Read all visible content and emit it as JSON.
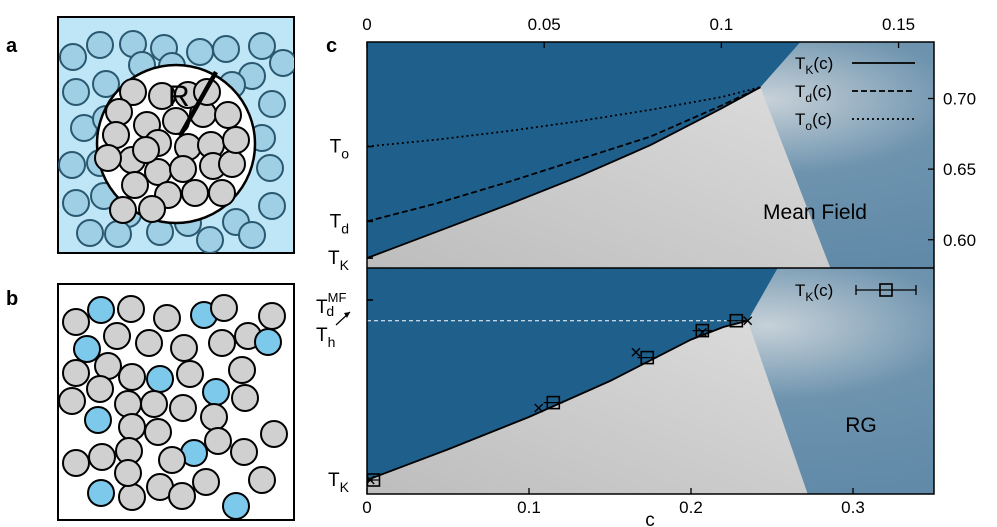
{
  "panels": {
    "a": {
      "letter": "a",
      "radius_label": "R"
    },
    "b": {
      "letter": "b"
    },
    "c": {
      "letter": "c"
    }
  },
  "colors": {
    "blue_dark": "#1e5f8c",
    "gray_light": "#d6d6d6",
    "particle_blue": "#7cc9ec",
    "particle_gray": "#d0d0d0",
    "panel_a_bg": "#bfe6f6"
  },
  "chart_data": [
    {
      "type": "line",
      "name": "Mean Field",
      "title": "Mean Field",
      "xlabel": "",
      "ylabel": "",
      "x_axis": "top",
      "y_axis": "right",
      "xlim": [
        0,
        0.16
      ],
      "ylim": [
        0.58,
        0.74
      ],
      "xticks": [
        "0",
        "0.05",
        "0.1",
        "0.15"
      ],
      "xtick_values": [
        0,
        0.05,
        0.1,
        0.15
      ],
      "yticks": [
        "0.60",
        "0.65",
        "0.70"
      ],
      "ytick_values": [
        0.6,
        0.65,
        0.7
      ],
      "left_labels": [
        {
          "text": "T",
          "sub": "o",
          "y": 0.666
        },
        {
          "text": "T",
          "sub": "d",
          "y": 0.613
        },
        {
          "text": "T",
          "sub": "K",
          "y": 0.587
        }
      ],
      "series": [
        {
          "name": "T_K(c)",
          "label": "T",
          "sub": "K",
          "suffix": "(c)",
          "style": "solid",
          "x": [
            0,
            0.02,
            0.04,
            0.06,
            0.08,
            0.1,
            0.111
          ],
          "y": [
            0.587,
            0.606,
            0.625,
            0.645,
            0.667,
            0.693,
            0.708
          ]
        },
        {
          "name": "T_d(c)",
          "label": "T",
          "sub": "d",
          "suffix": "(c)",
          "style": "dashed",
          "x": [
            0,
            0.02,
            0.04,
            0.06,
            0.08,
            0.1,
            0.111
          ],
          "y": [
            0.613,
            0.626,
            0.641,
            0.657,
            0.673,
            0.695,
            0.708
          ]
        },
        {
          "name": "T_o(c)",
          "label": "T",
          "sub": "o",
          "suffix": "(c)",
          "style": "dotted",
          "x": [
            0,
            0.02,
            0.04,
            0.06,
            0.08,
            0.1,
            0.111
          ],
          "y": [
            0.666,
            0.671,
            0.677,
            0.684,
            0.692,
            0.701,
            0.708
          ]
        }
      ],
      "legend_position": "top-right"
    },
    {
      "type": "scatter",
      "name": "RG",
      "title": "RG",
      "xlabel": "c",
      "ylabel": "",
      "x_axis": "bottom",
      "xlim": [
        0,
        0.35
      ],
      "ylim": [
        0,
        1
      ],
      "xticks": [
        "0",
        "0.1",
        "0.2",
        "0.3"
      ],
      "xtick_values": [
        0,
        0.1,
        0.2,
        0.3
      ],
      "left_labels": [
        {
          "text": "T",
          "sub": "d",
          "sup": "MF",
          "y": 0.93
        },
        {
          "text": "T",
          "sub": "h",
          "y": 0.86
        },
        {
          "text": "T",
          "sub": "K",
          "y": 0.0
        }
      ],
      "dashed_level_y": 0.885,
      "line": {
        "x": [
          0,
          0.05,
          0.1,
          0.15,
          0.2,
          0.22,
          0.235
        ],
        "y": [
          0.0,
          0.17,
          0.35,
          0.55,
          0.78,
          0.85,
          0.885
        ]
      },
      "series": [
        {
          "name": "T_K(c)",
          "label": "T",
          "sub": "K",
          "suffix": "(c)",
          "marker": "square-errorbar",
          "x": [
            0.004,
            0.115,
            0.173,
            0.207,
            0.228
          ],
          "y": [
            0.0,
            0.43,
            0.68,
            0.83,
            0.885
          ],
          "xerr": [
            0.004,
            0.006,
            0.006,
            0.006,
            0.006
          ]
        },
        {
          "name": "cross",
          "marker": "x",
          "x": [
            0.002,
            0.106,
            0.166,
            0.207,
            0.235
          ],
          "y": [
            0.0,
            0.4,
            0.71,
            0.82,
            0.885
          ]
        }
      ],
      "legend_position": "top-right"
    }
  ]
}
